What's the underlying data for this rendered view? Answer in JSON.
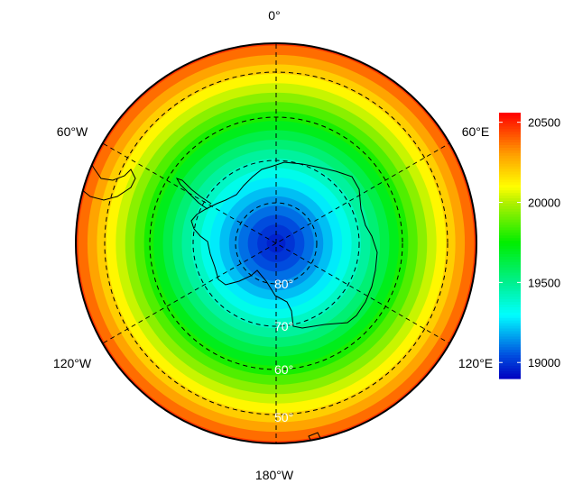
{
  "map": {
    "projection": "south-polar-stereographic",
    "longitude_labels": {
      "top": "0°",
      "upper_left": "60°W",
      "upper_right": "60°E",
      "lower_left": "120°W",
      "lower_right": "120°E",
      "bottom": "180°W"
    },
    "latitude_labels": [
      "80°",
      "70°",
      "60°",
      "50°"
    ],
    "field_range": [
      18950,
      20520
    ],
    "gridlines": "dashed",
    "coastlines": true
  },
  "colorbar": {
    "ticks": [
      "20500",
      "20000",
      "19500",
      "19000"
    ],
    "tick_values": [
      20500,
      20000,
      19500,
      19000
    ],
    "range": [
      18900,
      20560
    ],
    "colormap": [
      {
        "v": 18900,
        "c": "#0000c0"
      },
      {
        "v": 19050,
        "c": "#0050e0"
      },
      {
        "v": 19300,
        "c": "#00ffff"
      },
      {
        "v": 19500,
        "c": "#00f090"
      },
      {
        "v": 19750,
        "c": "#00ee00"
      },
      {
        "v": 20000,
        "c": "#b0f000"
      },
      {
        "v": 20100,
        "c": "#ffff00"
      },
      {
        "v": 20300,
        "c": "#ffa000"
      },
      {
        "v": 20560,
        "c": "#ff0000"
      }
    ]
  }
}
